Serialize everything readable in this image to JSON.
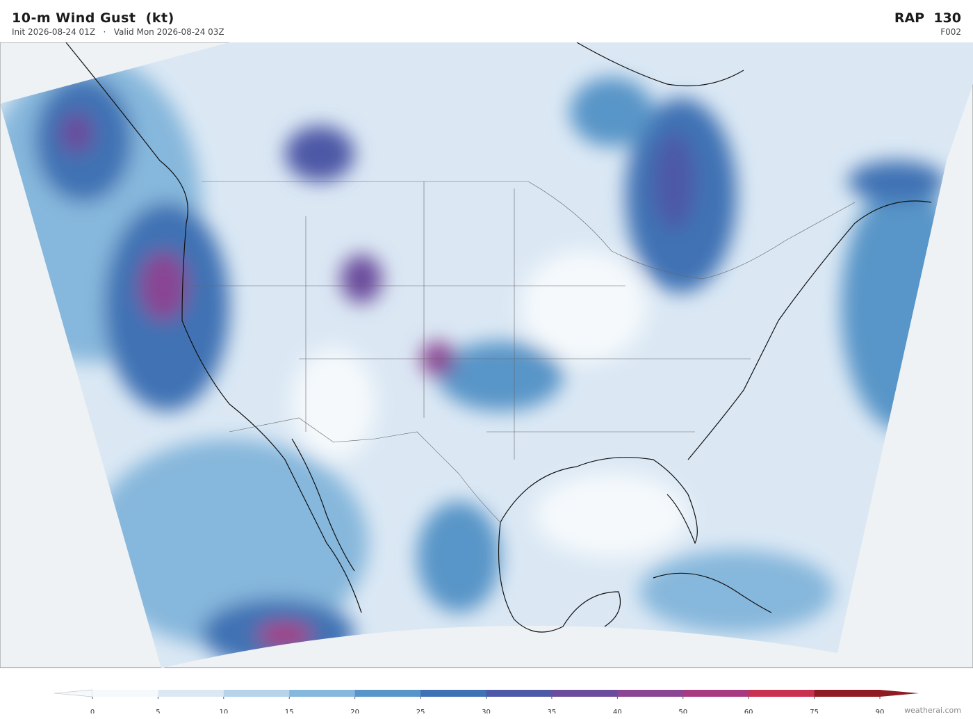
{
  "header": {
    "title": "10-m Wind Gust  (kt)",
    "subtitle": "Init 2026-08-24 01Z   ·   Valid Mon 2026-08-24 03Z",
    "model": "RAP  130",
    "forecast_hour": "F002"
  },
  "colorbar": {
    "ticks": [
      0,
      5,
      10,
      15,
      20,
      25,
      30,
      35,
      40,
      50,
      60,
      75,
      90
    ],
    "colors": [
      "#f5f9fc",
      "#dbe8f4",
      "#b6d3ea",
      "#86b7dc",
      "#5895c8",
      "#3f72b4",
      "#4d58a6",
      "#6b4b9c",
      "#8a4593",
      "#a83a80",
      "#c8314f",
      "#8e1c22"
    ]
  },
  "footer": {
    "credit": "weatherai.com"
  }
}
